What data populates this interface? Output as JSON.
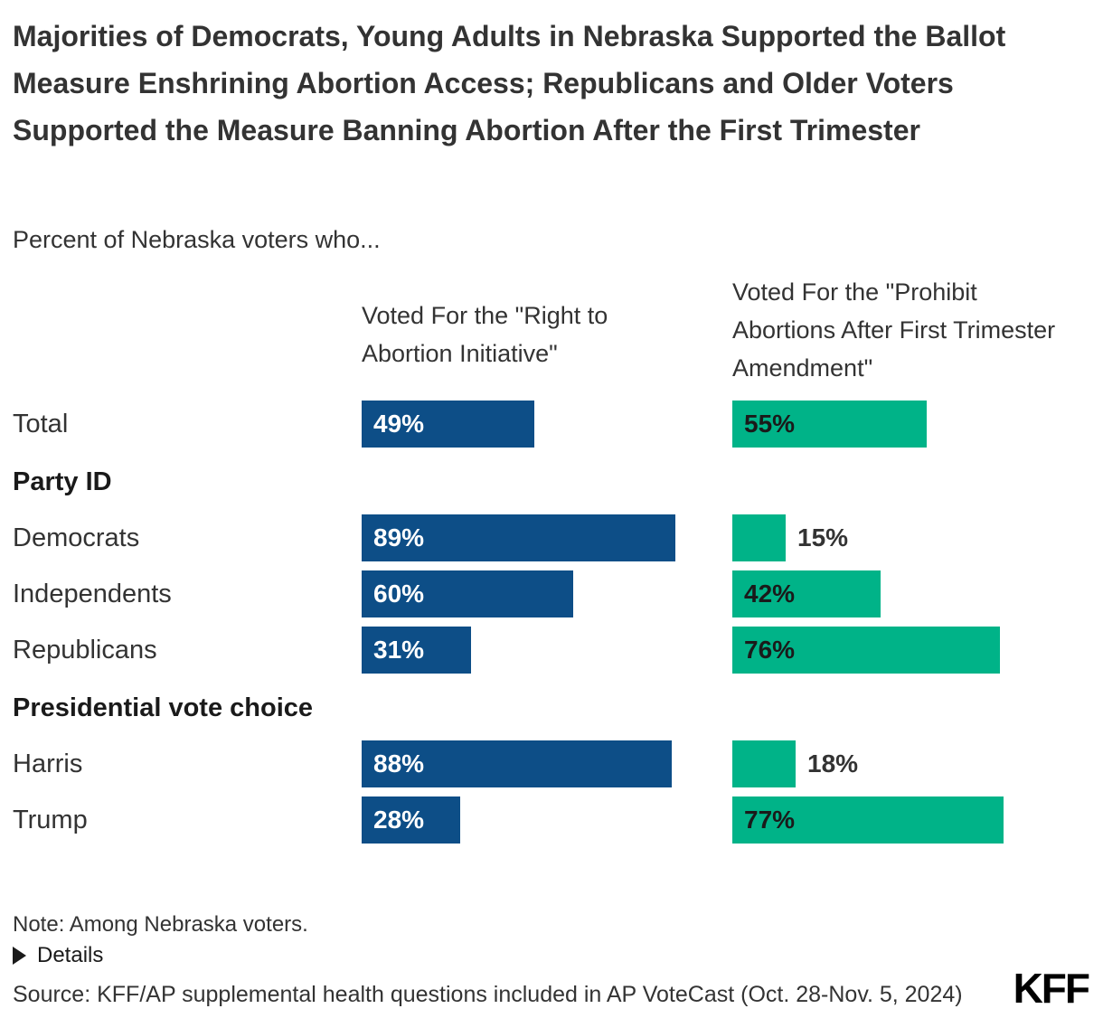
{
  "header": {
    "title": "Majorities of Democrats, Young Adults in Nebraska Supported the Ballot Measure Enshrining Abortion Access; Republicans and Older Voters Supported the Measure Banning Abortion After the First Trimester",
    "subtitle": "Percent of Nebraska voters who..."
  },
  "chart_data": {
    "type": "bar",
    "orientation": "horizontal",
    "value_suffix": "%",
    "xlim": [
      0,
      100
    ],
    "grid": false,
    "legend_position": "column-headers-above-bars",
    "columns": [
      {
        "label": "Voted For the \"Right to Abortion Initiative\"",
        "color": "#0d4e87",
        "value_color_inside": "#ffffff"
      },
      {
        "label": "Voted For the \"Prohibit Abortions After First Trimester Amendment\"",
        "color": "#00b388",
        "value_color_inside": "#1a1a1a"
      }
    ],
    "outside_label_threshold": 20,
    "rows": [
      {
        "type": "bar",
        "label": "Total",
        "values": [
          49,
          55
        ]
      },
      {
        "type": "group",
        "label": "Party ID"
      },
      {
        "type": "bar",
        "label": "Democrats",
        "values": [
          89,
          15
        ]
      },
      {
        "type": "bar",
        "label": "Independents",
        "values": [
          60,
          42
        ]
      },
      {
        "type": "bar",
        "label": "Republicans",
        "values": [
          31,
          76
        ]
      },
      {
        "type": "group",
        "label": "Presidential vote choice"
      },
      {
        "type": "bar",
        "label": "Harris",
        "values": [
          88,
          18
        ]
      },
      {
        "type": "bar",
        "label": "Trump",
        "values": [
          28,
          77
        ]
      }
    ]
  },
  "footer": {
    "note": "Note: Among Nebraska voters.",
    "details_label": "Details",
    "source": "Source: KFF/AP supplemental health questions included in AP VoteCast (Oct. 28-Nov. 5, 2024)",
    "logo": "KFF"
  }
}
